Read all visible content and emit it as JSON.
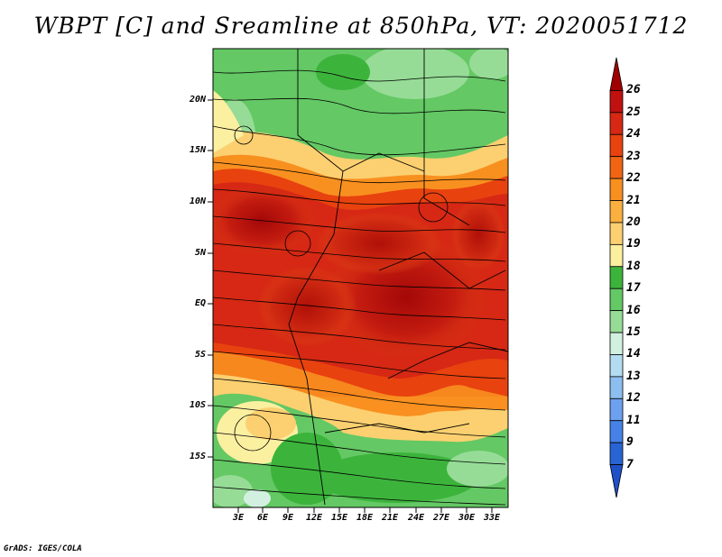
{
  "title": "WBPT [C] and Sreamline at 850hPa, VT: 2020051712",
  "credit": "GrADS: IGES/COLA",
  "map": {
    "lat_labels": [
      "20N",
      "15N",
      "10N",
      "5N",
      "EQ",
      "5S",
      "10S",
      "15S"
    ],
    "lon_labels": [
      "3E",
      "6E",
      "9E",
      "12E",
      "15E",
      "18E",
      "21E",
      "24E",
      "27E",
      "30E",
      "33E"
    ],
    "streamlines": "wind streamlines at 850hPa"
  },
  "colorbar": {
    "levels": [
      "26",
      "25",
      "24",
      "23",
      "22",
      "21",
      "20",
      "19",
      "18",
      "17",
      "16",
      "15",
      "14",
      "13",
      "12",
      "11",
      "9",
      "7"
    ],
    "colors": [
      "#a00000",
      "#c01010",
      "#d62814",
      "#e8420f",
      "#f06414",
      "#f89020",
      "#fab040",
      "#fcd070",
      "#fbefa0",
      "#3cb43c",
      "#64c864",
      "#96dc96",
      "#d2f0e0",
      "#b4dcf0",
      "#8cbef0",
      "#6ea0f0",
      "#4682e6",
      "#2864d2",
      "#1e50c8"
    ]
  }
}
